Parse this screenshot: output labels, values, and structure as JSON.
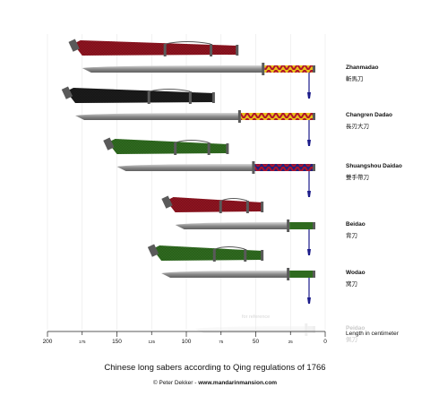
{
  "swords": [
    {
      "name": "Zhanmadao",
      "chinese": "斬馬刀",
      "faded": false,
      "total_cm": 175,
      "blade_cm": 45,
      "grip": "braided-yellow-red",
      "scabbard": "red"
    },
    {
      "name": "Changren Dadao",
      "chinese": "長刃大刀",
      "faded": false,
      "total_cm": 180,
      "blade_cm": 62,
      "grip": "braided-yellow-red",
      "scabbard": "black"
    },
    {
      "name": "Shuangshou Daidao",
      "chinese": "雙手帶刀",
      "faded": false,
      "total_cm": 150,
      "blade_cm": 52,
      "grip": "braided-blue-red",
      "scabbard": "green"
    },
    {
      "name": "Beidao",
      "chinese": "背刀",
      "faded": false,
      "total_cm": 108,
      "blade_cm": 27,
      "grip": "green",
      "scabbard": "red"
    },
    {
      "name": "Wodao",
      "chinese": "窝刀",
      "faded": false,
      "total_cm": 118,
      "blade_cm": 27,
      "grip": "green",
      "scabbard": "green"
    },
    {
      "name": "Peidao",
      "chinese": "佩刀",
      "faded": true,
      "total_cm": 94,
      "blade_cm": 14,
      "grip": "plain",
      "scabbard": "none",
      "note": "for reference"
    }
  ],
  "axis": {
    "title": "Length in centimeter",
    "range": [
      0,
      200
    ],
    "major_ticks": [
      200,
      150,
      100,
      50,
      0
    ],
    "minor_ticks": [
      175,
      125,
      75,
      25
    ]
  },
  "caption": "Chinese long sabers according to Qing regulations of 1766",
  "credit": {
    "owner": "© Peter Dekker - ",
    "site": "www.mandarinmansion.com"
  },
  "colors": {
    "red": "#8f1420",
    "black": "#1b1b1b",
    "green": "#2f6b1f",
    "gold": "#e8c21a",
    "crimson": "#b0132b",
    "navy": "#25207a",
    "blade": "#8a8a8a",
    "fitting": "#5a5a5a",
    "tassel": "#1c1c8a",
    "grid": "#e6e6e6"
  }
}
